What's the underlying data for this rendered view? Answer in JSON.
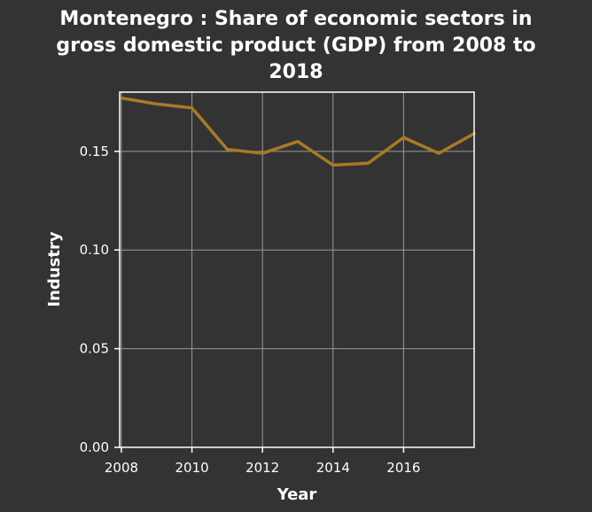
{
  "chart_data": {
    "type": "line",
    "title_lines": [
      "Montenegro : Share of economic sectors in",
      "gross domestic product (GDP) from 2008 to",
      "2018"
    ],
    "xlabel": "Year",
    "ylabel": "Industry",
    "xlim": [
      2007.95,
      2018
    ],
    "ylim": [
      0,
      0.18
    ],
    "x_ticks": [
      2008,
      2010,
      2012,
      2014,
      2016
    ],
    "y_ticks": [
      0.0,
      0.05,
      0.1,
      0.15
    ],
    "y_tick_labels": [
      "0.00",
      "0.05",
      "0.10",
      "0.15"
    ],
    "x_tick_labels": [
      "2008",
      "2010",
      "2012",
      "2014",
      "2016"
    ],
    "grid": true,
    "background_color": "#333333",
    "line_color": "#a97a26",
    "series": [
      {
        "x": [
          2008,
          2009,
          2010,
          2011,
          2012,
          2013,
          2014,
          2015,
          2016,
          2017,
          2018
        ],
        "values": [
          0.177,
          0.174,
          0.172,
          0.151,
          0.149,
          0.155,
          0.143,
          0.144,
          0.157,
          0.149,
          0.159
        ]
      }
    ]
  }
}
